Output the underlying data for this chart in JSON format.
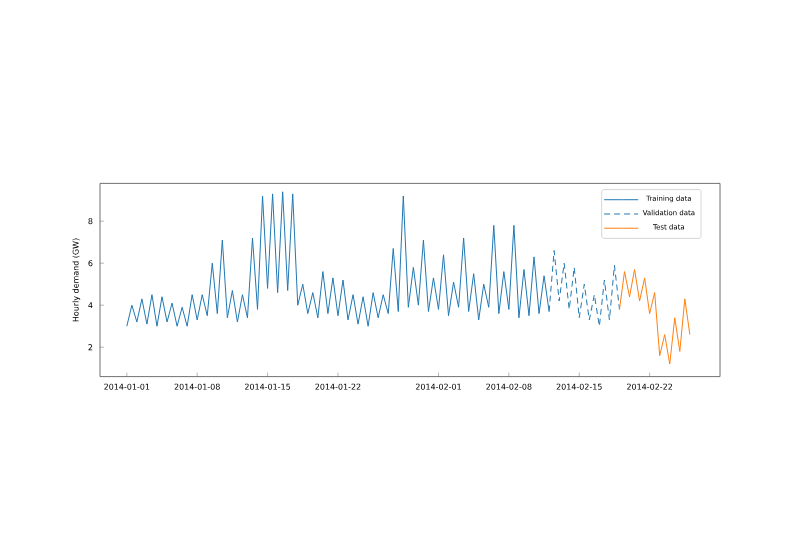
{
  "chart_data": {
    "type": "line",
    "ylabel": "Hourly demand (GW)",
    "xlim": [
      "2013-12-29T08:00",
      "2014-03-01T00:00"
    ],
    "ylim": [
      0.6,
      9.8
    ],
    "yticks": [
      2,
      4,
      6,
      8
    ],
    "xticks": [
      "2014-01-01",
      "2014-01-08",
      "2014-01-15",
      "2014-01-22",
      "2014-02-01",
      "2014-02-08",
      "2014-02-15",
      "2014-02-22"
    ],
    "legend": "top right",
    "grid": false,
    "marker": "none",
    "series": [
      {
        "name": "Training data",
        "color": "#1f77b4",
        "line_style": "solid",
        "x": [
          "2014-01-01T00:00",
          "2014-01-01T12:00",
          "2014-01-02T00:00",
          "2014-01-02T12:00",
          "2014-01-03T00:00",
          "2014-01-03T12:00",
          "2014-01-04T00:00",
          "2014-01-04T12:00",
          "2014-01-05T00:00",
          "2014-01-05T12:00",
          "2014-01-06T00:00",
          "2014-01-06T12:00",
          "2014-01-07T00:00",
          "2014-01-07T12:00",
          "2014-01-08T00:00",
          "2014-01-08T12:00",
          "2014-01-09T00:00",
          "2014-01-09T12:00",
          "2014-01-10T00:00",
          "2014-01-10T12:00",
          "2014-01-11T00:00",
          "2014-01-11T12:00",
          "2014-01-12T00:00",
          "2014-01-12T12:00",
          "2014-01-13T00:00",
          "2014-01-13T12:00",
          "2014-01-14T00:00",
          "2014-01-14T12:00",
          "2014-01-15T00:00",
          "2014-01-15T12:00",
          "2014-01-16T00:00",
          "2014-01-16T12:00",
          "2014-01-17T00:00",
          "2014-01-17T12:00",
          "2014-01-18T00:00",
          "2014-01-18T12:00",
          "2014-01-19T00:00",
          "2014-01-19T12:00",
          "2014-01-20T00:00",
          "2014-01-20T12:00",
          "2014-01-21T00:00",
          "2014-01-21T12:00",
          "2014-01-22T00:00",
          "2014-01-22T12:00",
          "2014-01-23T00:00",
          "2014-01-23T12:00",
          "2014-01-24T00:00",
          "2014-01-24T12:00",
          "2014-01-25T00:00",
          "2014-01-25T12:00",
          "2014-01-26T00:00",
          "2014-01-26T12:00",
          "2014-01-27T00:00",
          "2014-01-27T12:00",
          "2014-01-28T00:00",
          "2014-01-28T12:00",
          "2014-01-29T00:00",
          "2014-01-29T12:00",
          "2014-01-30T00:00",
          "2014-01-30T12:00",
          "2014-01-31T00:00",
          "2014-01-31T12:00",
          "2014-02-01T00:00",
          "2014-02-01T12:00",
          "2014-02-02T00:00",
          "2014-02-02T12:00",
          "2014-02-03T00:00",
          "2014-02-03T12:00",
          "2014-02-04T00:00",
          "2014-02-04T12:00",
          "2014-02-05T00:00",
          "2014-02-05T12:00",
          "2014-02-06T00:00",
          "2014-02-06T12:00",
          "2014-02-07T00:00",
          "2014-02-07T12:00",
          "2014-02-08T00:00",
          "2014-02-08T12:00",
          "2014-02-09T00:00",
          "2014-02-09T12:00",
          "2014-02-10T00:00",
          "2014-02-10T12:00",
          "2014-02-11T00:00",
          "2014-02-11T12:00",
          "2014-02-12T00:00"
        ],
        "values": [
          3.0,
          4.0,
          3.2,
          4.3,
          3.1,
          4.5,
          3.0,
          4.4,
          3.2,
          4.1,
          3.0,
          3.9,
          3.0,
          4.5,
          3.3,
          4.5,
          3.5,
          6.0,
          3.6,
          7.1,
          3.4,
          4.7,
          3.2,
          4.5,
          3.4,
          7.2,
          3.8,
          9.2,
          4.8,
          9.3,
          4.6,
          9.4,
          4.7,
          9.3,
          4.0,
          5.0,
          3.6,
          4.6,
          3.4,
          5.6,
          3.6,
          5.3,
          3.5,
          5.2,
          3.3,
          4.5,
          3.1,
          4.4,
          3.0,
          4.6,
          3.4,
          4.5,
          3.6,
          6.7,
          3.7,
          9.2,
          3.9,
          5.8,
          4.0,
          7.1,
          3.7,
          5.3,
          3.8,
          6.4,
          3.5,
          5.1,
          3.9,
          7.2,
          3.7,
          5.5,
          3.3,
          5.0,
          3.9,
          7.8,
          3.6,
          5.6,
          3.8,
          7.8,
          3.4,
          5.7,
          3.5,
          6.3,
          3.6,
          5.4,
          3.7
        ]
      },
      {
        "name": "Validation data",
        "color": "#1f77b4",
        "line_style": "dotted",
        "x": [
          "2014-02-12T00:00",
          "2014-02-12T12:00",
          "2014-02-13T00:00",
          "2014-02-13T12:00",
          "2014-02-14T00:00",
          "2014-02-14T12:00",
          "2014-02-15T00:00",
          "2014-02-15T12:00",
          "2014-02-16T00:00",
          "2014-02-16T12:00",
          "2014-02-17T00:00",
          "2014-02-17T12:00",
          "2014-02-18T00:00",
          "2014-02-18T12:00",
          "2014-02-19T00:00"
        ],
        "values": [
          3.7,
          6.6,
          4.2,
          6.0,
          3.8,
          5.8,
          3.4,
          5.0,
          3.3,
          4.5,
          3.0,
          5.2,
          3.3,
          5.9,
          3.8
        ]
      },
      {
        "name": "Test data",
        "color": "#ff7f0e",
        "line_style": "solid",
        "x": [
          "2014-02-19T00:00",
          "2014-02-19T12:00",
          "2014-02-20T00:00",
          "2014-02-20T12:00",
          "2014-02-21T00:00",
          "2014-02-21T12:00",
          "2014-02-22T00:00",
          "2014-02-22T12:00",
          "2014-02-23T00:00",
          "2014-02-23T12:00",
          "2014-02-24T00:00",
          "2014-02-24T12:00",
          "2014-02-25T00:00",
          "2014-02-25T12:00",
          "2014-02-26T00:00"
        ],
        "values": [
          3.8,
          5.6,
          4.4,
          5.7,
          4.2,
          5.3,
          3.6,
          4.6,
          1.6,
          2.6,
          1.2,
          3.4,
          1.8,
          4.3,
          2.6
        ]
      }
    ]
  }
}
